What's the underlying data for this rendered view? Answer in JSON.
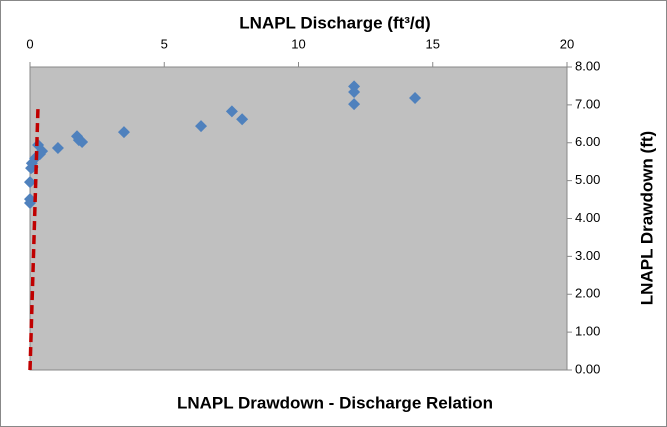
{
  "chart_data": {
    "type": "scatter",
    "title": "LNAPL Drawdown - Discharge Relation",
    "x_label": "LNAPL Discharge (ft³/d)",
    "y_label": "LNAPL Drawdown (ft)",
    "xlim": [
      0,
      20
    ],
    "xticks": [
      0,
      5,
      10,
      15,
      20
    ],
    "ylim": [
      0,
      8
    ],
    "yticks": [
      {
        "value": 0,
        "label": "0.00"
      },
      {
        "value": 1,
        "label": "1.00"
      },
      {
        "value": 2,
        "label": "2.00"
      },
      {
        "value": 3,
        "label": "3.00"
      },
      {
        "value": 4,
        "label": "4.00"
      },
      {
        "value": 5,
        "label": "5.00"
      },
      {
        "value": 6,
        "label": "6.00"
      },
      {
        "value": 7,
        "label": "7.00"
      },
      {
        "value": 8,
        "label": "8.00"
      }
    ],
    "x_axis_position": "top",
    "y_axis_position": "right",
    "series": [
      {
        "color": "#4f81bd",
        "mode": "markers",
        "x": [
          12.07,
          12.07,
          12.07,
          14.34,
          7.52,
          7.9,
          6.37,
          3.5,
          1.75,
          1.82,
          1.94,
          1.04,
          0.3,
          0.45,
          0.37,
          0.19,
          0.07,
          0.1,
          0.04,
          0,
          0,
          0
        ],
        "values": [
          7.49,
          7.34,
          7.02,
          7.18,
          6.83,
          6.62,
          6.44,
          6.28,
          6.17,
          6.07,
          6.02,
          5.86,
          5.94,
          5.78,
          5.7,
          5.59,
          5.46,
          5.36,
          5.33,
          4.96,
          4.51,
          4.41
        ]
      },
      {
        "color": "#c00000",
        "mode": "dashed-line",
        "x": [
          0,
          0.3
        ],
        "values": [
          0,
          7
        ]
      }
    ]
  }
}
